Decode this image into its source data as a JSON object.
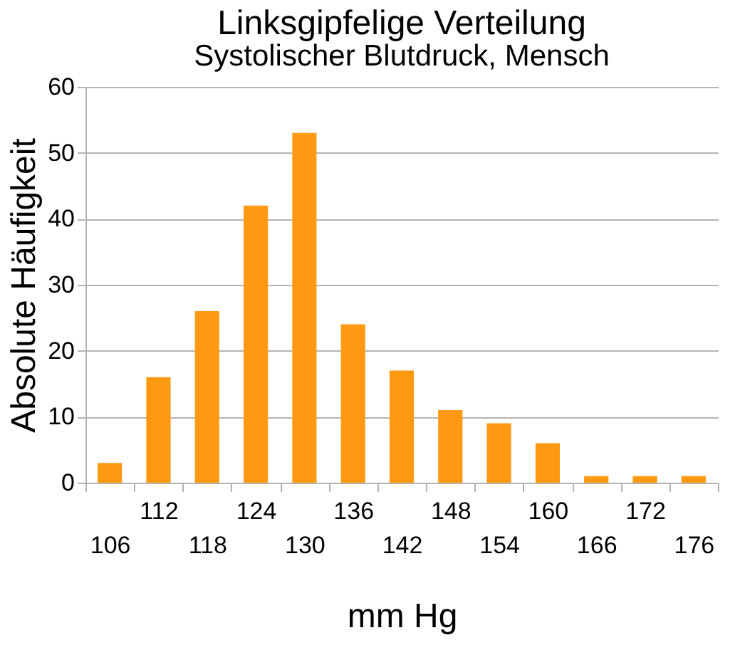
{
  "chart_data": {
    "type": "bar",
    "title": "Linksgipfelige Verteilung",
    "subtitle": "Systolischer Blutdruck, Mensch",
    "xlabel": "mm Hg",
    "ylabel": "Absolute Häufigkeit",
    "categories": [
      "106",
      "112",
      "118",
      "124",
      "130",
      "136",
      "142",
      "148",
      "154",
      "160",
      "166",
      "172",
      "176"
    ],
    "values": [
      3,
      16,
      26,
      42,
      53,
      24,
      17,
      11,
      9,
      6,
      1,
      1,
      1
    ],
    "color": "#ff9912",
    "ylim": [
      0,
      60
    ],
    "yticks": [
      0,
      10,
      20,
      30,
      40,
      50,
      60
    ],
    "grid": "y"
  }
}
